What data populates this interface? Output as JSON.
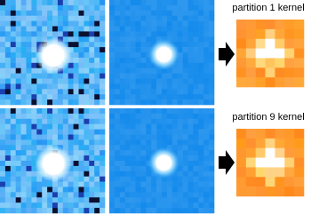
{
  "rows": [
    {
      "label": "partition 1 kernel"
    },
    {
      "label": "partition 9 kernel"
    }
  ]
}
